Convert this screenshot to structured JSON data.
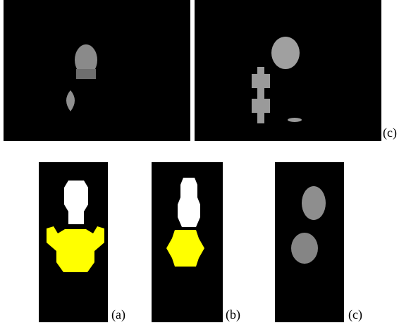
{
  "labels": {
    "top_right": "(c)",
    "a": "(a)",
    "b": "(b)",
    "c": "(c)"
  }
}
